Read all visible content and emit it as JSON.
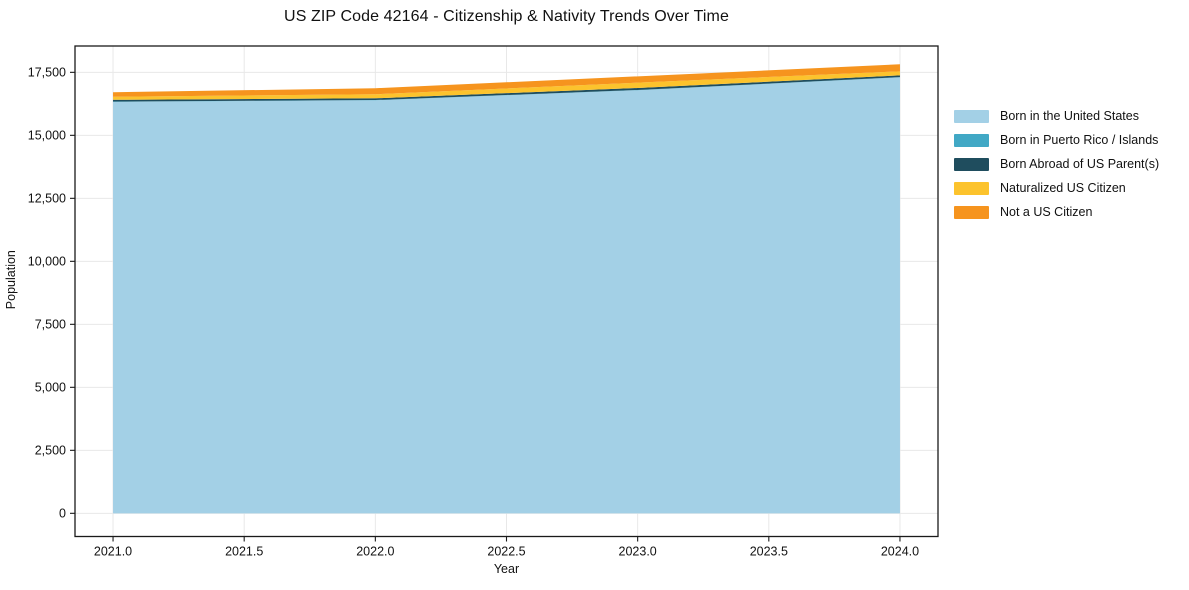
{
  "chart_data": {
    "type": "area",
    "stacked": true,
    "title": "US ZIP Code 42164 - Citizenship & Nativity Trends Over Time",
    "xlabel": "Year",
    "ylabel": "Population",
    "x": [
      2021,
      2022,
      2023,
      2024
    ],
    "series": [
      {
        "name": "Born in the United States",
        "color": "#a3d0e6",
        "values": [
          16330,
          16390,
          16790,
          17300
        ]
      },
      {
        "name": "Born in Puerto Rico / Islands",
        "color": "#41a8c5",
        "values": [
          10,
          10,
          10,
          10
        ]
      },
      {
        "name": "Born Abroad of US Parent(s)",
        "color": "#1f4d5e",
        "values": [
          70,
          70,
          80,
          70
        ]
      },
      {
        "name": "Naturalized US Citizen",
        "color": "#fcc32d",
        "values": [
          120,
          160,
          210,
          160
        ]
      },
      {
        "name": "Not a US Citizen",
        "color": "#f6941e",
        "values": [
          180,
          240,
          250,
          280
        ]
      }
    ],
    "xticks": {
      "values": [
        2021.0,
        2021.5,
        2022.0,
        2022.5,
        2023.0,
        2023.5,
        2024.0
      ],
      "labels": [
        "2021.0",
        "2021.5",
        "2022.0",
        "2022.5",
        "2023.0",
        "2023.5",
        "2024.0"
      ]
    },
    "yticks": {
      "values": [
        0,
        2500,
        5000,
        7500,
        10000,
        12500,
        15000,
        17500
      ],
      "labels": [
        "0",
        "2,500",
        "5,000",
        "7,500",
        "10,000",
        "12,500",
        "15,000",
        "17,500"
      ]
    },
    "xlim": [
      2020.855,
      2024.145
    ],
    "ylim": [
      -920,
      18545
    ],
    "grid": true,
    "grid_color": "#e8e8e8",
    "frame_color": "#1a1a1a",
    "text_color": "#111111",
    "legend_position": "right"
  }
}
